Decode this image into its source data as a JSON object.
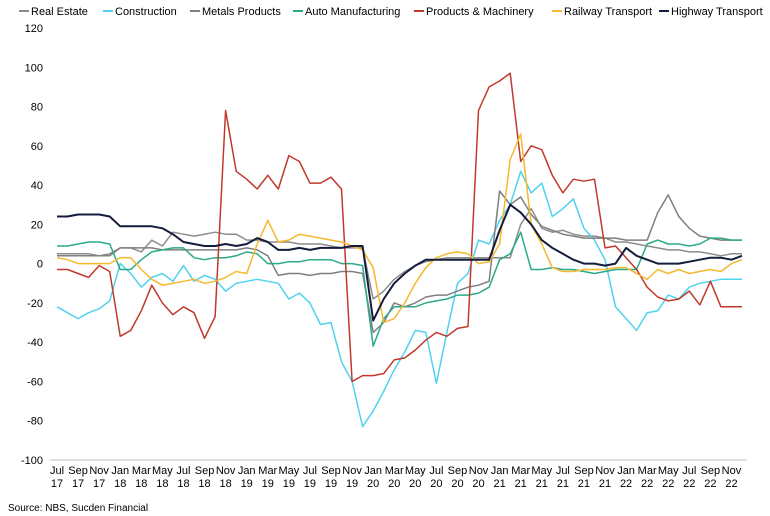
{
  "chart_data": {
    "type": "line",
    "title": "",
    "xlabel": "",
    "ylabel": "",
    "ylim": [
      -100,
      120
    ],
    "yticks": [
      -100,
      -80,
      -60,
      -40,
      -20,
      0,
      20,
      40,
      60,
      80,
      100,
      120
    ],
    "grid": false,
    "legend_position": "top",
    "x_tick_labels": [
      {
        "month": "Jul",
        "year": "17"
      },
      {
        "month": "Sep",
        "year": "17"
      },
      {
        "month": "Nov",
        "year": "17"
      },
      {
        "month": "Jan",
        "year": "18"
      },
      {
        "month": "Mar",
        "year": "18"
      },
      {
        "month": "May",
        "year": "18"
      },
      {
        "month": "Jul",
        "year": "18"
      },
      {
        "month": "Sep",
        "year": "18"
      },
      {
        "month": "Nov",
        "year": "18"
      },
      {
        "month": "Jan",
        "year": "19"
      },
      {
        "month": "Mar",
        "year": "19"
      },
      {
        "month": "May",
        "year": "19"
      },
      {
        "month": "Jul",
        "year": "19"
      },
      {
        "month": "Sep",
        "year": "19"
      },
      {
        "month": "Nov",
        "year": "19"
      },
      {
        "month": "Jan",
        "year": "20"
      },
      {
        "month": "Mar",
        "year": "20"
      },
      {
        "month": "May",
        "year": "20"
      },
      {
        "month": "Jul",
        "year": "20"
      },
      {
        "month": "Sep",
        "year": "20"
      },
      {
        "month": "Nov",
        "year": "20"
      },
      {
        "month": "Jan",
        "year": "21"
      },
      {
        "month": "Mar",
        "year": "21"
      },
      {
        "month": "May",
        "year": "21"
      },
      {
        "month": "Jul",
        "year": "21"
      },
      {
        "month": "Sep",
        "year": "21"
      },
      {
        "month": "Nov",
        "year": "21"
      },
      {
        "month": "Jan",
        "year": "22"
      },
      {
        "month": "Mar",
        "year": "22"
      },
      {
        "month": "May",
        "year": "22"
      },
      {
        "month": "Jul",
        "year": "22"
      },
      {
        "month": "Sep",
        "year": "22"
      },
      {
        "month": "Nov",
        "year": "22"
      }
    ],
    "x": [
      "2017-07",
      "2017-08",
      "2017-09",
      "2017-10",
      "2017-11",
      "2017-12",
      "2018-01",
      "2018-02",
      "2018-03",
      "2018-04",
      "2018-05",
      "2018-06",
      "2018-07",
      "2018-08",
      "2018-09",
      "2018-10",
      "2018-11",
      "2018-12",
      "2019-01",
      "2019-02",
      "2019-03",
      "2019-04",
      "2019-05",
      "2019-06",
      "2019-07",
      "2019-08",
      "2019-09",
      "2019-10",
      "2019-11",
      "2019-12",
      "2020-01",
      "2020-02",
      "2020-03",
      "2020-04",
      "2020-05",
      "2020-06",
      "2020-07",
      "2020-08",
      "2020-09",
      "2020-10",
      "2020-11",
      "2020-12",
      "2021-01",
      "2021-02",
      "2021-03",
      "2021-04",
      "2021-05",
      "2021-06",
      "2021-07",
      "2021-08",
      "2021-09",
      "2021-10",
      "2021-11",
      "2021-12",
      "2022-01",
      "2022-02",
      "2022-03",
      "2022-04",
      "2022-05",
      "2022-06",
      "2022-07",
      "2022-08",
      "2022-09",
      "2022-10",
      "2022-11",
      "2022-12"
    ],
    "series": [
      {
        "name": "Real Estate",
        "color": "#8c8c8c",
        "values": [
          5,
          5,
          5,
          5,
          4,
          5,
          8,
          8,
          6,
          12,
          9,
          16,
          15,
          14,
          15,
          16,
          15,
          15,
          12,
          12,
          11,
          11,
          11,
          10,
          10,
          10,
          9,
          8,
          8,
          8,
          -18,
          -14,
          -8,
          -4,
          -1,
          1,
          2,
          3,
          3,
          3,
          3,
          3,
          3,
          3,
          20,
          28,
          18,
          16,
          17,
          15,
          14,
          14,
          13,
          11,
          11,
          10,
          9,
          8,
          7,
          7,
          6,
          6,
          5,
          4,
          5,
          5
        ]
      },
      {
        "name": "Construction",
        "color": "#4fd2f0",
        "values": [
          -22,
          -25,
          -28,
          -25,
          -23,
          -19,
          0,
          -5,
          -12,
          -7,
          -5,
          -9,
          -1,
          -9,
          -6,
          -8,
          -14,
          -10,
          -9,
          -8,
          -9,
          -10,
          -18,
          -15,
          -20,
          -31,
          -30,
          -50,
          -60,
          -83,
          -75,
          -65,
          -54,
          -45,
          -34,
          -35,
          -61,
          -35,
          -10,
          -5,
          12,
          10,
          22,
          30,
          47,
          36,
          41,
          24,
          28,
          33,
          18,
          12,
          2,
          -22,
          -28,
          -34,
          -25,
          -24,
          -16,
          -18,
          -12,
          -10,
          -9,
          -8,
          -8,
          -8
        ]
      },
      {
        "name": "Metals Products",
        "color": "#7f7f7f",
        "values": [
          4,
          4,
          4,
          4,
          4,
          4,
          8,
          8,
          8,
          8,
          7,
          7,
          7,
          7,
          7,
          7,
          7,
          7,
          8,
          7,
          4,
          -6,
          -5,
          -5,
          -6,
          -5,
          -5,
          -4,
          -4,
          -5,
          -35,
          -30,
          -20,
          -22,
          -20,
          -17,
          -16,
          -16,
          -14,
          -12,
          -11,
          -9,
          37,
          30,
          34,
          25,
          19,
          17,
          15,
          14,
          13,
          13,
          13,
          13,
          12,
          12,
          12,
          26,
          35,
          24,
          18,
          14,
          13,
          12,
          12,
          12
        ]
      },
      {
        "name": "Auto Manufacturing",
        "color": "#2baa8a",
        "values": [
          9,
          9,
          10,
          11,
          11,
          10,
          -3,
          -3,
          2,
          6,
          7,
          8,
          8,
          3,
          2,
          3,
          3,
          4,
          6,
          5,
          0,
          0,
          1,
          1,
          2,
          2,
          2,
          0,
          0,
          -1,
          -42,
          -28,
          -22,
          -22,
          -22,
          -20,
          -19,
          -18,
          -16,
          -16,
          -15,
          -12,
          2,
          5,
          16,
          -3,
          -3,
          -2,
          -3,
          -3,
          -4,
          -5,
          -4,
          -3,
          -3,
          -3,
          10,
          12,
          10,
          10,
          9,
          10,
          13,
          13,
          12,
          12
        ]
      },
      {
        "name": "Products & Machinery",
        "color": "#c0392b",
        "values": [
          -3,
          -3,
          -5,
          -7,
          -1,
          -4,
          -37,
          -34,
          -24,
          -11,
          -20,
          -26,
          -22,
          -25,
          -38,
          -27,
          78,
          47,
          43,
          38,
          45,
          38,
          55,
          52,
          41,
          41,
          44,
          38,
          -60,
          -57,
          -57,
          -56,
          -49,
          -48,
          -44,
          -39,
          -35,
          -37,
          -33,
          -32,
          78,
          90,
          93,
          97,
          52,
          60,
          58,
          45,
          36,
          43,
          42,
          43,
          8,
          9,
          3,
          -3,
          -12,
          -17,
          -19,
          -18,
          -14,
          -21,
          -9,
          -22,
          -22,
          -22
        ]
      },
      {
        "name": "Railway Transport",
        "color": "#f5b82e",
        "values": [
          3,
          2,
          0,
          0,
          0,
          0,
          3,
          3,
          -3,
          -8,
          -11,
          -10,
          -9,
          -8,
          -10,
          -9,
          -7,
          -4,
          -5,
          10,
          22,
          11,
          12,
          15,
          14,
          13,
          12,
          11,
          9,
          7,
          -2,
          -30,
          -28,
          -20,
          -10,
          -2,
          3,
          5,
          6,
          5,
          0,
          1,
          10,
          53,
          66,
          20,
          10,
          -2,
          -4,
          -4,
          -3,
          -3,
          -3,
          -2,
          -2,
          -5,
          -8,
          -3,
          -5,
          -3,
          -5,
          -4,
          -3,
          -4,
          0,
          2
        ]
      },
      {
        "name": "Highway Transport",
        "color": "#141c3c",
        "values": [
          24,
          24,
          25,
          25,
          25,
          24,
          19,
          19,
          19,
          19,
          18,
          15,
          11,
          10,
          9,
          9,
          10,
          9,
          10,
          13,
          11,
          7,
          7,
          8,
          7,
          8,
          8,
          8,
          9,
          9,
          -29,
          -18,
          -10,
          -5,
          -1,
          2,
          2,
          2,
          2,
          2,
          2,
          2,
          17,
          30,
          26,
          20,
          12,
          8,
          5,
          2,
          0,
          0,
          -1,
          0,
          8,
          4,
          2,
          0,
          0,
          0,
          1,
          2,
          3,
          3,
          2,
          4
        ]
      }
    ]
  },
  "source": "Source: NBS, Sucden Financial"
}
